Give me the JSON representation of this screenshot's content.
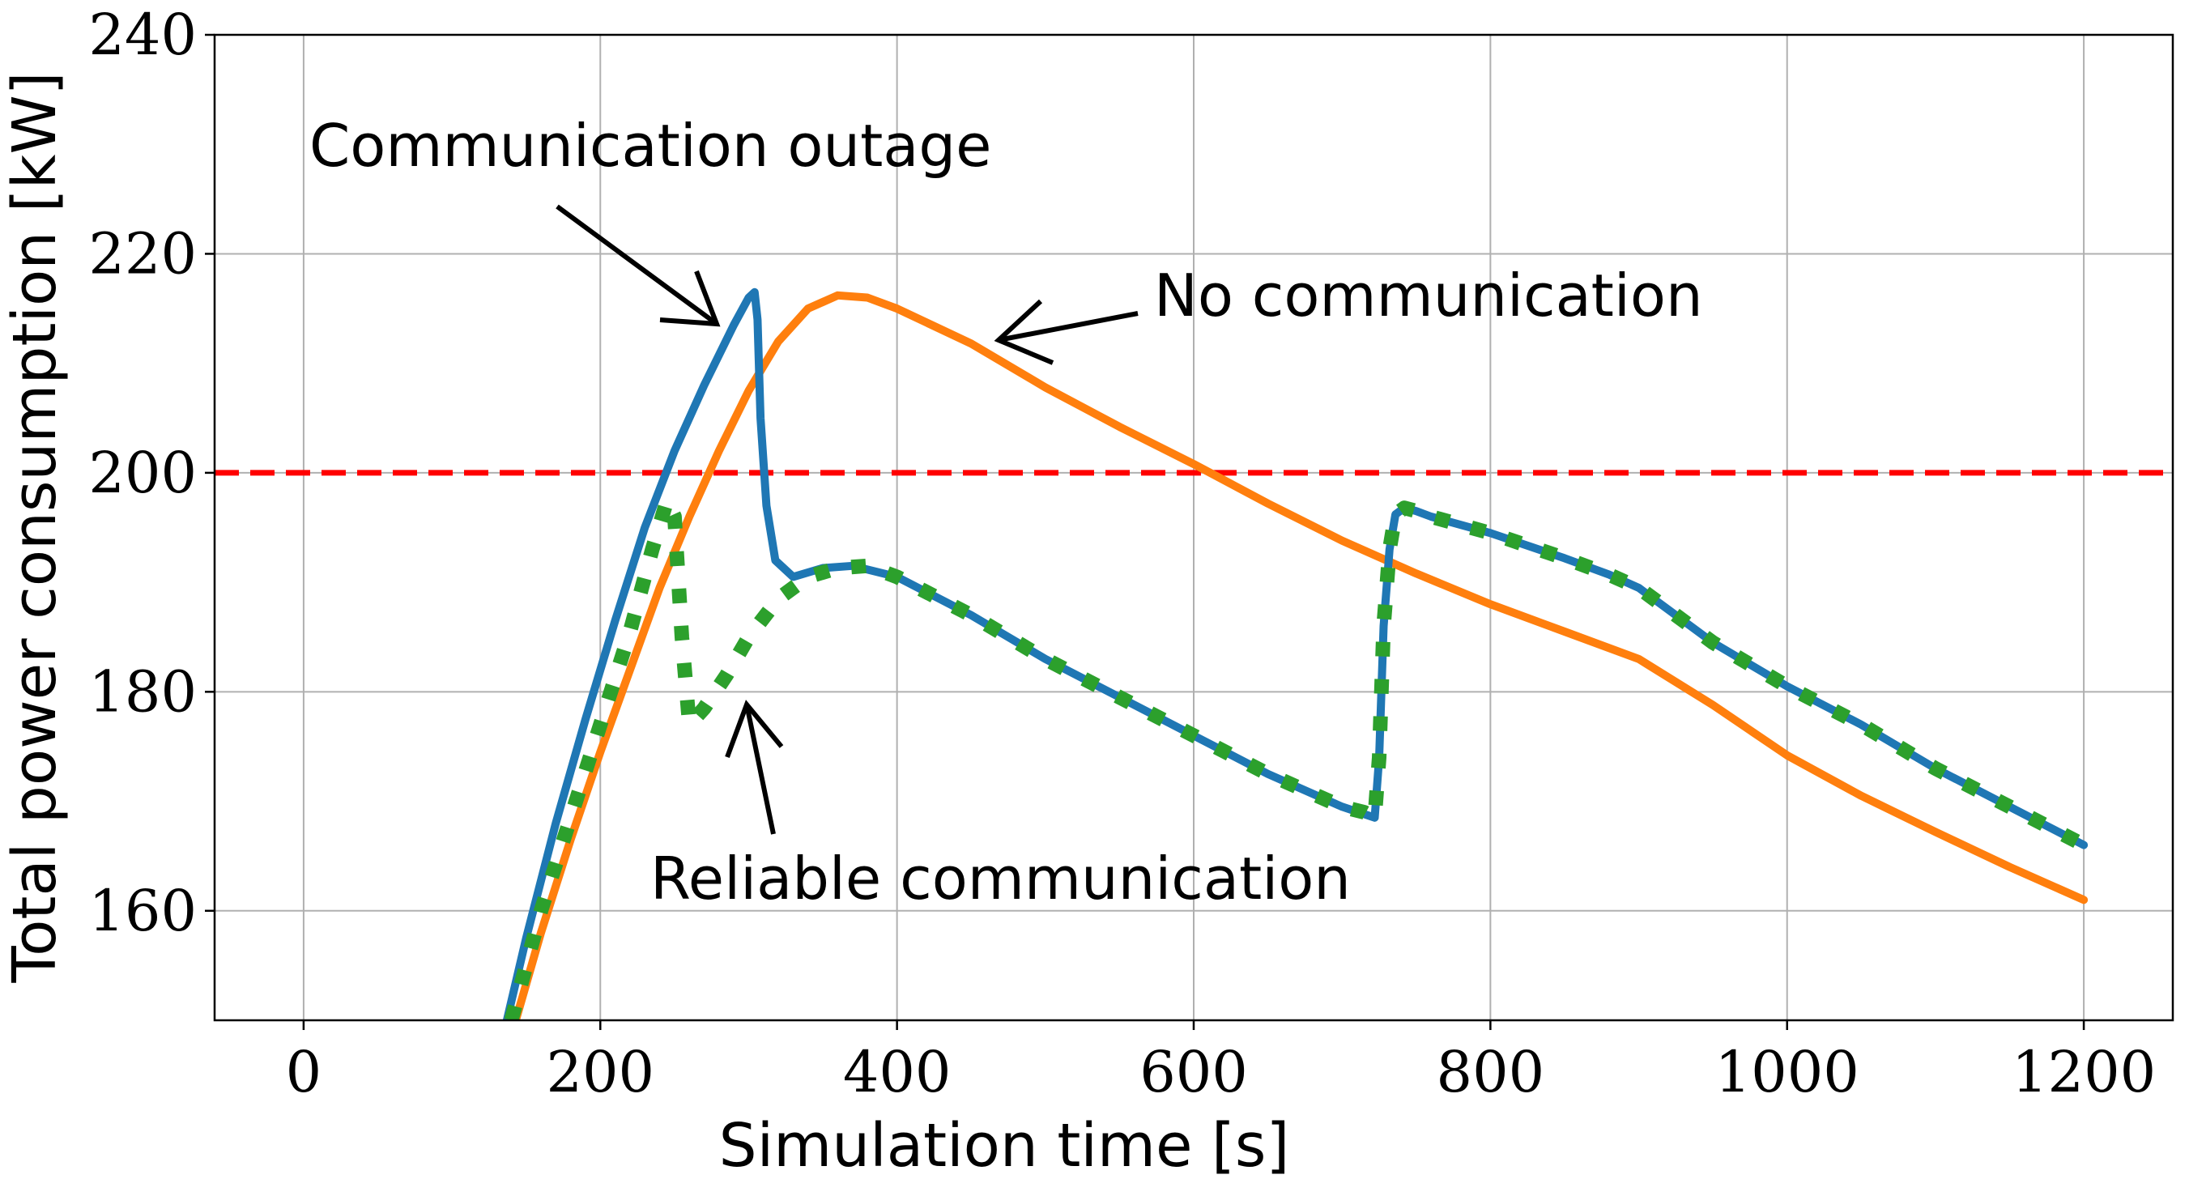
{
  "chart_data": {
    "type": "line",
    "title": "",
    "xlabel": "Simulation time [s]",
    "ylabel": "Total power consumption [kW]",
    "xlim": [
      -60,
      1260
    ],
    "ylim": [
      150,
      240
    ],
    "xticks": [
      "0",
      "200",
      "400",
      "600",
      "800",
      "1000",
      "1200"
    ],
    "yticks": [
      "160",
      "180",
      "200",
      "220",
      "240"
    ],
    "grid": true,
    "legend": "none",
    "threshold": {
      "value": 200,
      "color": "#ff0000",
      "style": "dashed"
    },
    "series": [
      {
        "color": "#1f77b4",
        "style": "solid",
        "x": [
          137,
          150,
          170,
          190,
          210,
          230,
          250,
          270,
          290,
          300,
          304,
          306,
          308,
          312,
          318,
          330,
          350,
          370,
          400,
          450,
          500,
          550,
          600,
          650,
          700,
          722,
          725,
          728,
          732,
          736,
          742,
          750,
          760,
          800,
          850,
          880,
          900,
          950,
          1000,
          1050,
          1100,
          1150,
          1200
        ],
        "y": [
          150,
          157.5,
          168,
          177.5,
          186.5,
          195,
          202,
          208,
          213.5,
          216,
          216.5,
          214,
          205,
          197,
          192,
          190.5,
          191.3,
          191.5,
          190.5,
          187,
          183,
          179.5,
          176,
          172.5,
          169.5,
          168.5,
          174,
          186,
          193,
          196.2,
          196.8,
          196.5,
          196,
          194.5,
          192.2,
          190.7,
          189.5,
          184.5,
          180.5,
          177,
          173,
          169.5,
          166
        ]
      },
      {
        "color": "#ff7f0e",
        "style": "solid",
        "x": [
          143,
          160,
          180,
          200,
          220,
          240,
          260,
          280,
          300,
          320,
          340,
          360,
          380,
          400,
          450,
          500,
          550,
          600,
          650,
          700,
          750,
          800,
          850,
          900,
          950,
          1000,
          1050,
          1100,
          1150,
          1200
        ],
        "y": [
          150,
          158,
          166.5,
          174.5,
          182,
          189.5,
          196,
          202,
          207.5,
          212,
          215,
          216.2,
          216,
          215,
          211.8,
          207.8,
          204.2,
          200.8,
          197.2,
          193.8,
          190.8,
          188,
          185.5,
          183,
          178.8,
          174.2,
          170.5,
          167.2,
          164,
          161
        ]
      },
      {
        "color": "#2ca02c",
        "style": "dotted",
        "x": [
          140,
          160,
          180,
          200,
          220,
          235,
          245,
          250,
          255,
          260,
          270,
          285,
          300,
          320,
          340,
          360,
          380,
          400,
          450,
          500,
          550,
          600,
          650,
          700,
          715,
          722,
          725,
          728,
          732,
          736,
          742,
          750,
          760,
          800,
          850,
          880,
          900,
          950,
          1000,
          1050,
          1100,
          1150,
          1200
        ],
        "y": [
          150,
          160,
          168.5,
          177,
          185.5,
          193,
          197.5,
          196,
          185,
          177,
          178.5,
          181.5,
          185,
          188.5,
          190.5,
          191.3,
          191.5,
          190.5,
          187,
          183,
          179.5,
          176,
          172.5,
          169.5,
          169,
          168.5,
          174,
          186,
          193,
          196.2,
          196.8,
          196.5,
          196,
          194.5,
          192.2,
          190.7,
          189.5,
          184.5,
          180.5,
          177,
          173,
          169.5,
          166
        ]
      }
    ],
    "annotations": [
      {
        "text": "Communication outage"
      },
      {
        "text": "No communication"
      },
      {
        "text": "Reliable communication"
      }
    ]
  }
}
